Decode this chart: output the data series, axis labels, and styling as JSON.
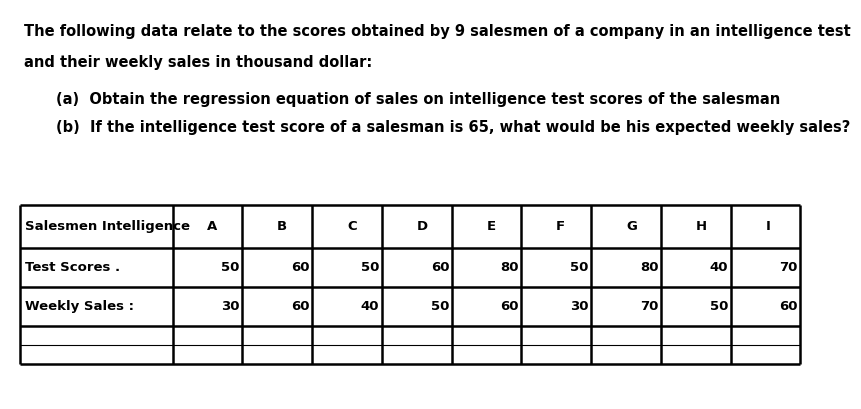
{
  "title_line1": "The following data relate to the scores obtained by 9 salesmen of a company in an intelligence test",
  "title_line2": "and their weekly sales in thousand dollar:",
  "question_a": "(a)  Obtain the regression equation of sales on intelligence test scores of the salesman",
  "question_b": "(b)  If the intelligence test score of a salesman is 65, what would be his expected weekly sales?",
  "col_headers": [
    "Salesmen Intelligence",
    "A",
    "B",
    "C",
    "D",
    "E",
    "F",
    "G",
    "H",
    "I"
  ],
  "row1_label": "Test Scores .",
  "row2_label": "Weekly Sales :",
  "test_scores": [
    50,
    60,
    50,
    60,
    80,
    50,
    80,
    40,
    70
  ],
  "weekly_sales": [
    30,
    60,
    40,
    50,
    60,
    30,
    70,
    50,
    60
  ],
  "bg_color": "#ffffff",
  "text_color": "#000000",
  "title_fontsize": 10.5,
  "question_fontsize": 10.5,
  "table_fontsize": 9.5
}
